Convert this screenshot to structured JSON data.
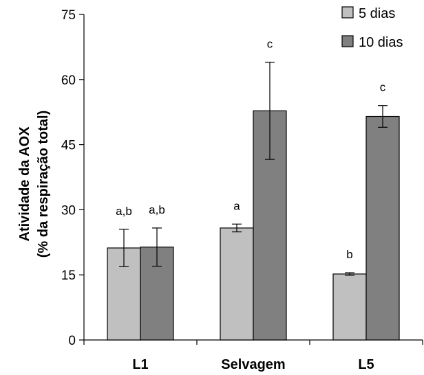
{
  "chart_data": {
    "type": "bar",
    "title": "",
    "ylabel_lines": [
      "Atividade da AOX",
      "(% da respiração total)"
    ],
    "xlabel": "",
    "ylim": [
      0,
      75
    ],
    "yticks": [
      0,
      15,
      30,
      45,
      60,
      75
    ],
    "categories": [
      "L1",
      "Selvagem",
      "L5"
    ],
    "series": [
      {
        "name": "5 dias",
        "color": "#c0c0c0",
        "values": [
          21.2,
          25.8,
          15.2
        ],
        "errors": [
          4.3,
          0.9,
          0.3
        ],
        "labels": [
          "a,b",
          "a",
          "b"
        ]
      },
      {
        "name": "10 dias",
        "color": "#808080",
        "values": [
          21.4,
          52.8,
          51.5
        ],
        "errors": [
          4.4,
          11.2,
          2.5
        ],
        "labels": [
          "a,b",
          "c",
          "c"
        ]
      }
    ],
    "legend_position": "top-right",
    "grid": false
  }
}
